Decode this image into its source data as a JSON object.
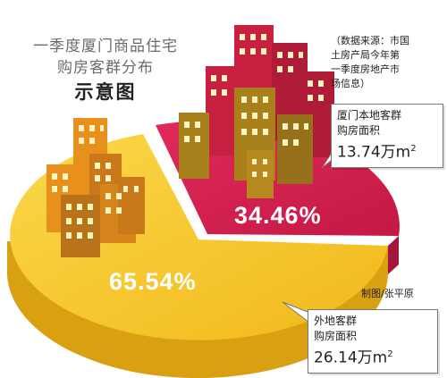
{
  "title": {
    "line1": "一季度厦门商品住宅",
    "line2": "购房客群分布",
    "line3": "示意图"
  },
  "source_note": [
    "（数据来源：市国",
    "土房产局今年第",
    "一季度房地产市",
    "场信息）"
  ],
  "credit": "制图/张平原",
  "callouts": {
    "local": {
      "line1": "厦门本地客群",
      "line2": "购房面积",
      "value": "13.74万m",
      "sup": "2"
    },
    "outside": {
      "line1": "外地客群",
      "line2": "购房面积",
      "value": "26.14万m",
      "sup": "2"
    }
  },
  "colors": {
    "local_top": "#d41f4f",
    "local_side": "#a3163c",
    "outside_top": "#f5c524",
    "outside_side": "#d9a112",
    "building_red": "#c8213f",
    "building_gold": "#a8801c",
    "building_orange": "#e8901c"
  },
  "chart_data": {
    "type": "pie",
    "title": "一季度厦门商品住宅购房客群分布示意图",
    "slices": [
      {
        "label": "厦门本地客群",
        "value": 34.46,
        "display": "34.46%"
      },
      {
        "label": "外地客群",
        "value": 65.54,
        "display": "65.54%"
      }
    ]
  }
}
